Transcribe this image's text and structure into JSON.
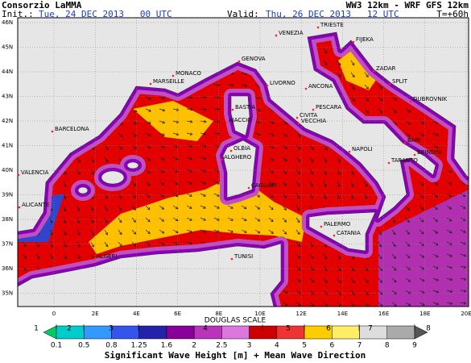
{
  "header": {
    "title": "Consorzio LaMMA",
    "model": "WW3 12km - WRF GFS 12km",
    "init_label": "Init.:",
    "init": "Tue, 24 DEC 2013   00 UTC",
    "valid_label": "Valid:",
    "valid": "Thu, 26 DEC 2013   12 UTC",
    "lead": "T=+60h"
  },
  "map": {
    "lat_labels": [
      "46N",
      "45N",
      "44N",
      "43N",
      "42N",
      "41N",
      "40N",
      "39N",
      "38N",
      "37N",
      "36N",
      "35N"
    ],
    "lon_labels": [
      "0",
      "2E",
      "4E",
      "6E",
      "8E",
      "10E",
      "12E",
      "14E",
      "16E",
      "18E",
      "20E"
    ],
    "cities": [
      "TRIESTE",
      "VENEZIA",
      "FIJEKA",
      "GENOVA",
      "MONACO",
      "MARSEILLE",
      "LIVORNO",
      "ZADAR",
      "ANCONA",
      "SPLIT",
      "DUBROVNIK",
      "BASTIA",
      "AJACCIO",
      "PESCARA",
      "CIVITA",
      "VECCHIA",
      "BARCELONA",
      "OLBIA",
      "ALGHERO",
      "NAPOLI",
      "BARI",
      "BRINDISI",
      "TARANTO",
      "VALENCIA",
      "CAGLIARI",
      "ALICANTE",
      "PALERMO",
      "CATANIA",
      "TUNISI",
      "ALGERI"
    ]
  },
  "legend": {
    "scale_title": "DOUGLAS SCALE",
    "douglas": [
      "1",
      "2",
      "3",
      "4",
      "5",
      "6",
      "7",
      "8"
    ],
    "values": [
      "0.1",
      "0.5",
      "0.8",
      "1.25",
      "1.6",
      "2",
      "2.5",
      "3",
      "4",
      "5",
      "6",
      "7",
      "8",
      "9"
    ],
    "title": "Significant Wave Height [m] + Mean Wave Direction"
  }
}
